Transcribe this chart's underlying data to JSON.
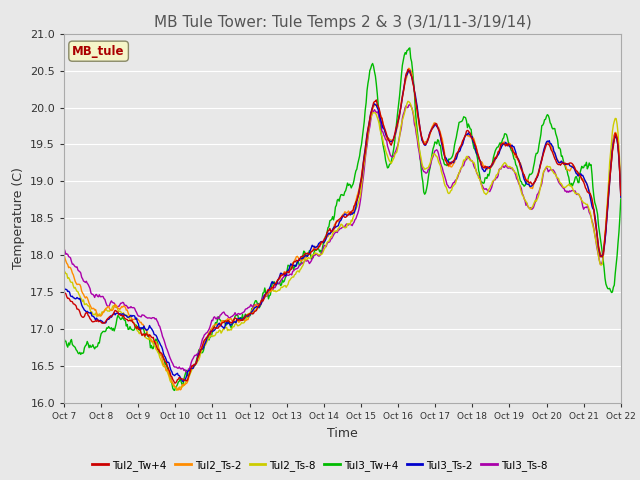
{
  "title": "MB Tule Tower: Tule Temps 2 & 3 (3/1/11-3/19/14)",
  "xlabel": "Time",
  "ylabel": "Temperature (C)",
  "ylim": [
    16.0,
    21.0
  ],
  "yticks": [
    16.0,
    16.5,
    17.0,
    17.5,
    18.0,
    18.5,
    19.0,
    19.5,
    20.0,
    20.5,
    21.0
  ],
  "xtick_labels": [
    "Oct 7",
    "Oct 8",
    "Oct 9",
    "Oct 10",
    "Oct 11",
    "Oct 12",
    "Oct 13",
    "Oct 14",
    "Oct 15",
    "Oct 16",
    "Oct 17",
    "Oct 18",
    "Oct 19",
    "Oct 20",
    "Oct 21",
    "Oct 22"
  ],
  "legend_entries": [
    "Tul2_Tw+4",
    "Tul2_Ts-2",
    "Tul2_Ts-8",
    "Tul3_Tw+4",
    "Tul3_Ts-2",
    "Tul3_Ts-8"
  ],
  "legend_colors": [
    "#CC0000",
    "#FF8C00",
    "#CCCC00",
    "#00BB00",
    "#0000CC",
    "#AA00AA"
  ],
  "series_colors": [
    "#CC0000",
    "#FF8C00",
    "#CCCC00",
    "#00BB00",
    "#0000CC",
    "#AA00AA"
  ],
  "inset_label": "MB_tule",
  "inset_label_color": "#AA0000",
  "background_color": "#e8e8e8",
  "plot_bg_color": "#e8e8e8",
  "grid_color": "#ffffff",
  "title_color": "#555555",
  "title_fontsize": 11,
  "axis_fontsize": 9,
  "tick_fontsize": 8
}
